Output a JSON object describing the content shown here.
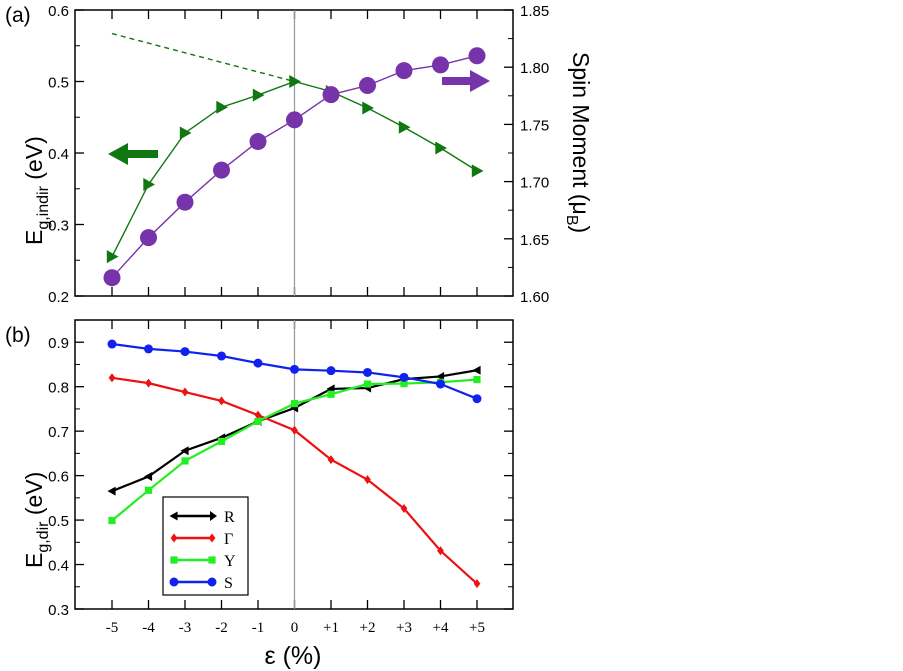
{
  "chart_data": [
    {
      "panel_label": "(a)",
      "type": "line",
      "x": [
        -5,
        -4,
        -3,
        -2,
        -1,
        0,
        1,
        2,
        3,
        4,
        5
      ],
      "ylabel": "E",
      "ylabel_sub": "g,indir",
      "ylabel_unit": " (eV)",
      "ylim": [
        0.2,
        0.6
      ],
      "yticks": [
        0.2,
        0.3,
        0.4,
        0.5,
        0.6
      ],
      "y2label": "Spin Moment (μ",
      "y2label_sub": "B",
      "y2label_end": ")",
      "y2lim": [
        1.6,
        1.85
      ],
      "y2ticks": [
        1.6,
        1.65,
        1.7,
        1.75,
        1.8,
        1.85
      ],
      "series": [
        {
          "axis": "left",
          "marker": "triangle-right",
          "color": "#117711",
          "values": [
            0.255,
            0.356,
            0.428,
            0.464,
            0.481,
            0.5,
            0.486,
            0.463,
            0.436,
            0.407,
            0.375
          ]
        },
        {
          "axis": "right",
          "marker": "circle",
          "color": "#7733aa",
          "values": [
            1.616,
            1.651,
            1.682,
            1.71,
            1.735,
            1.754,
            1.776,
            1.784,
            1.797,
            1.802,
            1.81
          ]
        }
      ],
      "dashed_extrapolation": {
        "x": [
          -5,
          0
        ],
        "values": [
          0.567,
          0.5
        ],
        "color": "#117711"
      },
      "vertical_line_x": 0,
      "arrows": [
        {
          "direction": "left",
          "color": "#117711",
          "points_to": "left axis"
        },
        {
          "direction": "right",
          "color": "#7733aa",
          "points_to": "right axis"
        }
      ]
    },
    {
      "panel_label": "(b)",
      "type": "line",
      "categories": [
        "-5",
        "-4",
        "-3",
        "-2",
        "-1",
        "0",
        "+1",
        "+2",
        "+3",
        "+4",
        "+5"
      ],
      "x": [
        -5,
        -4,
        -3,
        -2,
        -1,
        0,
        1,
        2,
        3,
        4,
        5
      ],
      "xlabel": "ε (%)",
      "ylabel": "E",
      "ylabel_sub": "g,dir",
      "ylabel_unit": " (eV)",
      "ylim": [
        0.3,
        0.95
      ],
      "yticks": [
        0.3,
        0.4,
        0.5,
        0.6,
        0.7,
        0.8,
        0.9
      ],
      "legend_position": "bottom-left",
      "vertical_line_x": 0,
      "series": [
        {
          "name": "R",
          "marker": "triangle-left",
          "color": "#000000",
          "values": [
            0.565,
            0.598,
            0.656,
            0.685,
            0.722,
            0.752,
            0.795,
            0.797,
            0.817,
            0.823,
            0.837
          ]
        },
        {
          "name": "Γ",
          "marker": "diamond",
          "color": "#ee1111",
          "values": [
            0.82,
            0.808,
            0.788,
            0.768,
            0.736,
            0.702,
            0.636,
            0.591,
            0.526,
            0.431,
            0.357
          ]
        },
        {
          "name": "Y",
          "marker": "square",
          "color": "#22ee22",
          "values": [
            0.499,
            0.567,
            0.633,
            0.677,
            0.722,
            0.762,
            0.783,
            0.806,
            0.807,
            0.81,
            0.816
          ]
        },
        {
          "name": "S",
          "marker": "circle",
          "color": "#1122ee",
          "values": [
            0.896,
            0.885,
            0.879,
            0.869,
            0.853,
            0.839,
            0.836,
            0.832,
            0.821,
            0.806,
            0.773
          ]
        }
      ]
    }
  ]
}
